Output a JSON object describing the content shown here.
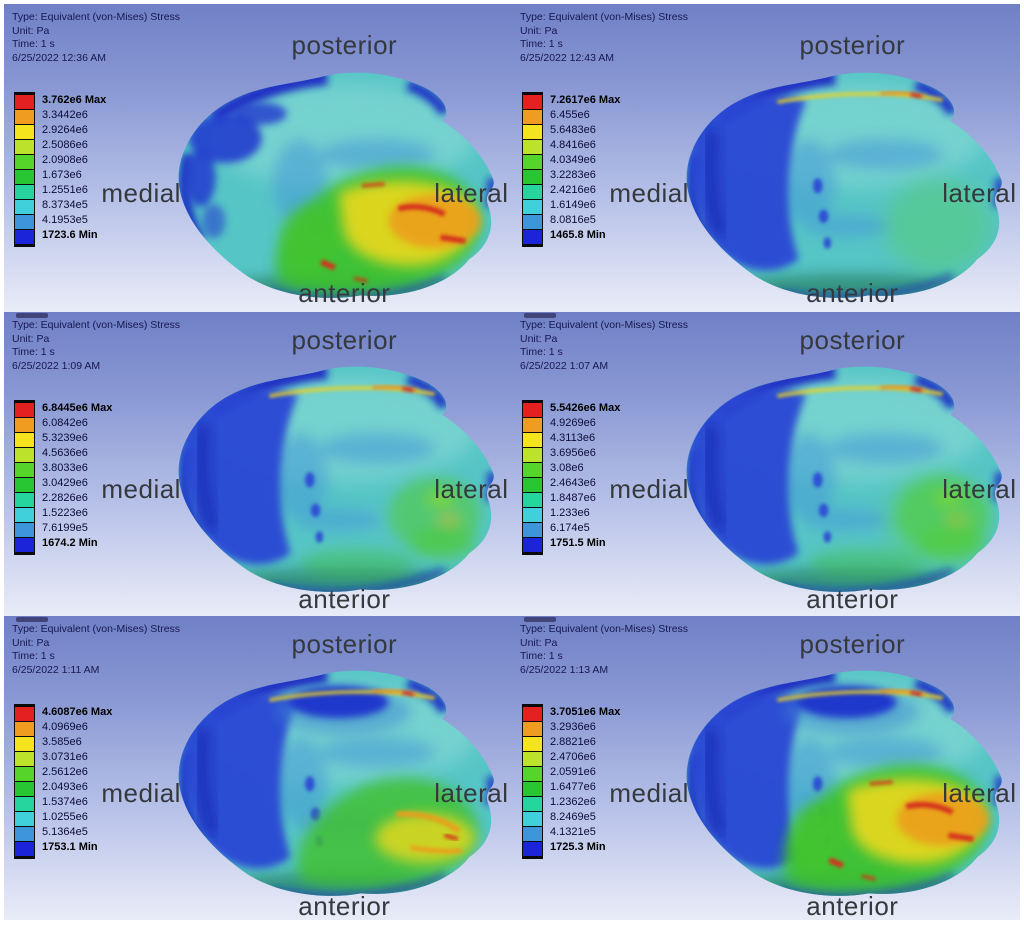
{
  "figure_title": "Equivalent (von-Mises) stress contour panels",
  "legend_colors": [
    "#e42020",
    "#f09c20",
    "#f4e41e",
    "#bce22a",
    "#55d42a",
    "#28c632",
    "#26d49e",
    "#40d0dc",
    "#3d96dc",
    "#1b24d8"
  ],
  "panels": [
    {
      "position": "top-left",
      "header_lines": [
        "Type: Equivalent (von-Mises) Stress",
        "Unit: Pa",
        "Time: 1 s",
        "6/25/2022 12:36 AM"
      ],
      "legend_ticks": [
        "3.762e6 Max",
        "3.3442e6",
        "2.9264e6",
        "2.5086e6",
        "2.0908e6",
        "1.673e6",
        "1.2551e6",
        "8.3734e5",
        "4.1953e5",
        "1723.6 Min"
      ],
      "orientation_labels": {
        "top": "posterior",
        "bottom": "anterior",
        "left": "medial",
        "right": "lateral"
      },
      "overlays": [
        "medial-blue-patchy",
        "hot-large"
      ],
      "artifact": false
    },
    {
      "position": "top-right",
      "header_lines": [
        "Type: Equivalent (von-Mises) Stress",
        "Unit: Pa",
        "Time: 1 s",
        "6/25/2022 12:43 AM"
      ],
      "legend_ticks": [
        "7.2617e6 Max",
        "6.455e6",
        "5.6483e6",
        "4.8416e6",
        "4.0349e6",
        "3.2283e6",
        "2.4216e6",
        "1.6149e6",
        "8.0816e5",
        "1465.8 Min"
      ],
      "orientation_labels": {
        "top": "posterior",
        "bottom": "anterior",
        "left": "medial",
        "right": "lateral"
      },
      "overlays": [
        "medial-blue-solid",
        "top-streak",
        "green-hint"
      ],
      "artifact": false
    },
    {
      "position": "middle-left",
      "header_lines": [
        "Type: Equivalent (von-Mises) Stress",
        "Unit: Pa",
        "Time: 1 s",
        "6/25/2022 1:09 AM"
      ],
      "legend_ticks": [
        "6.8445e6 Max",
        "6.0842e6",
        "5.3239e6",
        "4.5636e6",
        "3.8033e6",
        "3.0429e6",
        "2.2826e6",
        "1.5223e6",
        "7.6199e5",
        "1674.2 Min"
      ],
      "orientation_labels": {
        "top": "posterior",
        "bottom": "anterior",
        "left": "medial",
        "right": "lateral"
      },
      "overlays": [
        "medial-blue-solid",
        "top-streak",
        "green-mid"
      ],
      "artifact": true
    },
    {
      "position": "middle-right",
      "header_lines": [
        "Type: Equivalent (von-Mises) Stress",
        "Unit: Pa",
        "Time: 1 s",
        "6/25/2022 1:07 AM"
      ],
      "legend_ticks": [
        "5.5426e6 Max",
        "4.9269e6",
        "4.3113e6",
        "3.6956e6",
        "3.08e6",
        "2.4643e6",
        "1.8487e6",
        "1.233e6",
        "6.174e5",
        "1751.5 Min"
      ],
      "orientation_labels": {
        "top": "posterior",
        "bottom": "anterior",
        "left": "medial",
        "right": "lateral"
      },
      "overlays": [
        "medial-blue-solid",
        "top-streak",
        "green-mid",
        "green-hint"
      ],
      "artifact": true
    },
    {
      "position": "bottom-left",
      "header_lines": [
        "Type: Equivalent (von-Mises) Stress",
        "Unit: Pa",
        "Time: 1 s",
        "6/25/2022 1:11 AM"
      ],
      "legend_ticks": [
        "4.6087e6 Max",
        "4.0969e6",
        "3.585e6",
        "3.0731e6",
        "2.5612e6",
        "2.0493e6",
        "1.5374e6",
        "1.0255e6",
        "5.1364e5",
        "1753.1 Min"
      ],
      "orientation_labels": {
        "top": "posterior",
        "bottom": "anterior",
        "left": "medial",
        "right": "lateral"
      },
      "overlays": [
        "medial-blue-solid",
        "blue-pocket",
        "top-streak",
        "hot-small"
      ],
      "artifact": true
    },
    {
      "position": "bottom-right",
      "header_lines": [
        "Type: Equivalent (von-Mises) Stress",
        "Unit: Pa",
        "Time: 1 s",
        "6/25/2022 1:13 AM"
      ],
      "legend_ticks": [
        "3.7051e6 Max",
        "3.2936e6",
        "2.8821e6",
        "2.4706e6",
        "2.0591e6",
        "1.6477e6",
        "1.2362e6",
        "8.2469e5",
        "4.1321e5",
        "1725.3 Min"
      ],
      "orientation_labels": {
        "top": "posterior",
        "bottom": "anterior",
        "left": "medial",
        "right": "lateral"
      },
      "overlays": [
        "medial-blue-solid",
        "blue-pocket",
        "top-streak",
        "hot-large"
      ],
      "artifact": true
    }
  ],
  "chart_data": [
    {
      "type": "heatmap",
      "title": "Equivalent (von-Mises) Stress",
      "subtitle": "6/25/2022 12:36 AM",
      "unit": "Pa",
      "time": "1 s",
      "max": 3762000,
      "min": 1723.6,
      "scale_values_pa": [
        3762000,
        3344200,
        2926400,
        2508600,
        2090800,
        1673000,
        1255100,
        837340,
        419530,
        1723.6
      ],
      "legend_position": "left",
      "orientation_labels": [
        "posterior",
        "anterior",
        "medial",
        "lateral"
      ]
    },
    {
      "type": "heatmap",
      "title": "Equivalent (von-Mises) Stress",
      "subtitle": "6/25/2022 12:43 AM",
      "unit": "Pa",
      "time": "1 s",
      "max": 7261700,
      "min": 1465.8,
      "scale_values_pa": [
        7261700,
        6455000,
        5648300,
        4841600,
        4034900,
        3228300,
        2421600,
        1614900,
        808160,
        1465.8
      ],
      "legend_position": "left",
      "orientation_labels": [
        "posterior",
        "anterior",
        "medial",
        "lateral"
      ]
    },
    {
      "type": "heatmap",
      "title": "Equivalent (von-Mises) Stress",
      "subtitle": "6/25/2022 1:09 AM",
      "unit": "Pa",
      "time": "1 s",
      "max": 6844500,
      "min": 1674.2,
      "scale_values_pa": [
        6844500,
        6084200,
        5323900,
        4563600,
        3803300,
        3042900,
        2282600,
        1522300,
        761990,
        1674.2
      ],
      "legend_position": "left",
      "orientation_labels": [
        "posterior",
        "anterior",
        "medial",
        "lateral"
      ]
    },
    {
      "type": "heatmap",
      "title": "Equivalent (von-Mises) Stress",
      "subtitle": "6/25/2022 1:07 AM",
      "unit": "Pa",
      "time": "1 s",
      "max": 5542600,
      "min": 1751.5,
      "scale_values_pa": [
        5542600,
        4926900,
        4311300,
        3695600,
        3080000,
        2464300,
        1848700,
        1233000,
        617400,
        1751.5
      ],
      "legend_position": "left",
      "orientation_labels": [
        "posterior",
        "anterior",
        "medial",
        "lateral"
      ]
    },
    {
      "type": "heatmap",
      "title": "Equivalent (von-Mises) Stress",
      "subtitle": "6/25/2022 1:11 AM",
      "unit": "Pa",
      "time": "1 s",
      "max": 4608700,
      "min": 1753.1,
      "scale_values_pa": [
        4608700,
        4096900,
        3585000,
        3073100,
        2561200,
        2049300,
        1537400,
        1025500,
        513640,
        1753.1
      ],
      "legend_position": "left",
      "orientation_labels": [
        "posterior",
        "anterior",
        "medial",
        "lateral"
      ]
    },
    {
      "type": "heatmap",
      "title": "Equivalent (von-Mises) Stress",
      "subtitle": "6/25/2022 1:13 AM",
      "unit": "Pa",
      "time": "1 s",
      "max": 3705100,
      "min": 1725.3,
      "scale_values_pa": [
        3705100,
        3293600,
        2882100,
        2470600,
        2059100,
        1647700,
        1236200,
        824690,
        413210,
        1725.3
      ],
      "legend_position": "left",
      "orientation_labels": [
        "posterior",
        "anterior",
        "medial",
        "lateral"
      ]
    }
  ]
}
